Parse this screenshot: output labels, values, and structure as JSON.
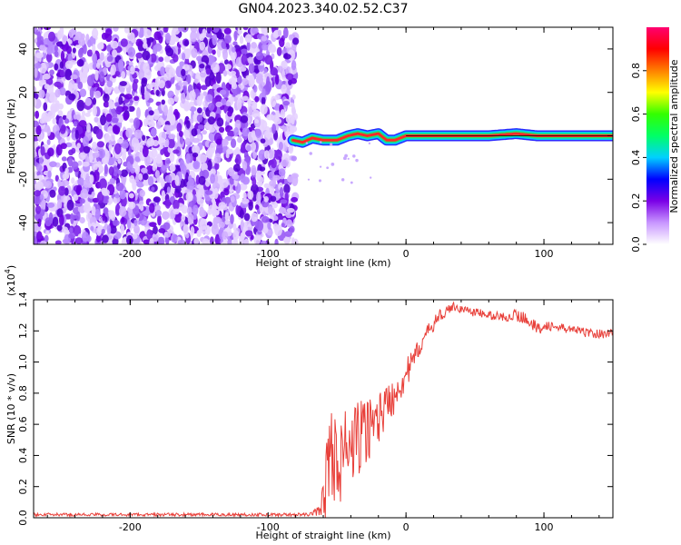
{
  "figure": {
    "title": "GN04.2023.340.02.52.C37"
  },
  "chart_data": [
    {
      "type": "heatmap",
      "title": "GN04.2023.340.02.52.C37",
      "xlabel": "Height of straight line (km)",
      "ylabel": "Frequency (Hz)",
      "xlim": [
        -270,
        150
      ],
      "ylim": [
        -50,
        50
      ],
      "xticks": [
        -200,
        -100,
        0,
        100
      ],
      "yticks": [
        -40,
        -20,
        0,
        20,
        40
      ],
      "xtick_labels": [
        "-200",
        "-100",
        "0",
        "100"
      ],
      "ytick_labels": [
        "-40",
        "-20",
        "0",
        "20",
        "40"
      ],
      "noise_region_x": [
        -270,
        -80
      ],
      "signal_line": {
        "x": [
          -82,
          -75,
          -68,
          -60,
          -50,
          -42,
          -35,
          -28,
          -20,
          -14,
          -8,
          0,
          10,
          30,
          60,
          80,
          95,
          150
        ],
        "freq": [
          -2,
          -3,
          -1,
          -2,
          -2,
          0,
          1,
          0,
          1,
          -2,
          -2,
          0,
          0,
          0,
          0,
          1,
          0,
          0
        ]
      },
      "colorbar": {
        "label": "Normalized spectral amplitude",
        "range": [
          0.0,
          1.0
        ],
        "ticks": [
          0.0,
          0.2,
          0.4,
          0.6,
          0.8
        ],
        "tick_labels": [
          "0.0",
          "0.2",
          "0.4",
          "0.6",
          "0.8"
        ],
        "colors": [
          "#ffffff",
          "#c896ff",
          "#7a00e6",
          "#0000ff",
          "#00d0ff",
          "#00ff66",
          "#33ff00",
          "#ffff00",
          "#ff8000",
          "#ff0000",
          "#ff0070"
        ]
      }
    },
    {
      "type": "line",
      "xlabel": "Height of straight line (km)",
      "ylabel": "SNR (10 * v/v)",
      "y_scale_label": "(x10",
      "y_scale_exponent": "4",
      "y_scale_suffix": ")",
      "xlim": [
        -270,
        150
      ],
      "ylim": [
        0,
        1.4
      ],
      "xticks": [
        -200,
        -100,
        0,
        100
      ],
      "yticks": [
        0.0,
        0.2,
        0.4,
        0.6,
        0.8,
        1.0,
        1.2,
        1.4
      ],
      "xtick_labels": [
        "-200",
        "-100",
        "0",
        "100"
      ],
      "ytick_labels": [
        "0.0",
        "0.2",
        "0.4",
        "0.6",
        "0.8",
        "1.0",
        "1.2",
        "1.4"
      ],
      "series": [
        {
          "color": "#e8403a",
          "x": [
            -270,
            -200,
            -150,
            -100,
            -70,
            -62,
            -58,
            -55,
            -50,
            -45,
            -40,
            -35,
            -30,
            -25,
            -20,
            -15,
            -10,
            -5,
            0,
            5,
            10,
            15,
            20,
            25,
            30,
            35,
            40,
            50,
            60,
            70,
            80,
            90,
            95,
            100,
            110,
            120,
            130,
            140,
            150
          ],
          "y": [
            0.02,
            0.02,
            0.02,
            0.02,
            0.02,
            0.05,
            0.2,
            0.45,
            0.35,
            0.4,
            0.45,
            0.5,
            0.55,
            0.6,
            0.65,
            0.7,
            0.78,
            0.85,
            0.92,
            1.0,
            1.1,
            1.18,
            1.25,
            1.3,
            1.33,
            1.36,
            1.34,
            1.32,
            1.3,
            1.29,
            1.3,
            1.27,
            1.2,
            1.24,
            1.22,
            1.21,
            1.19,
            1.18,
            1.19
          ],
          "noise_amp": [
            0.01,
            0.01,
            0.01,
            0.01,
            0.01,
            0.04,
            0.25,
            0.3,
            0.3,
            0.3,
            0.28,
            0.25,
            0.22,
            0.2,
            0.18,
            0.15,
            0.14,
            0.12,
            0.1,
            0.08,
            0.06,
            0.05,
            0.05,
            0.04,
            0.03,
            0.03,
            0.03,
            0.03,
            0.03,
            0.03,
            0.04,
            0.04,
            0.05,
            0.03,
            0.03,
            0.03,
            0.03,
            0.03,
            0.03
          ]
        }
      ]
    }
  ]
}
